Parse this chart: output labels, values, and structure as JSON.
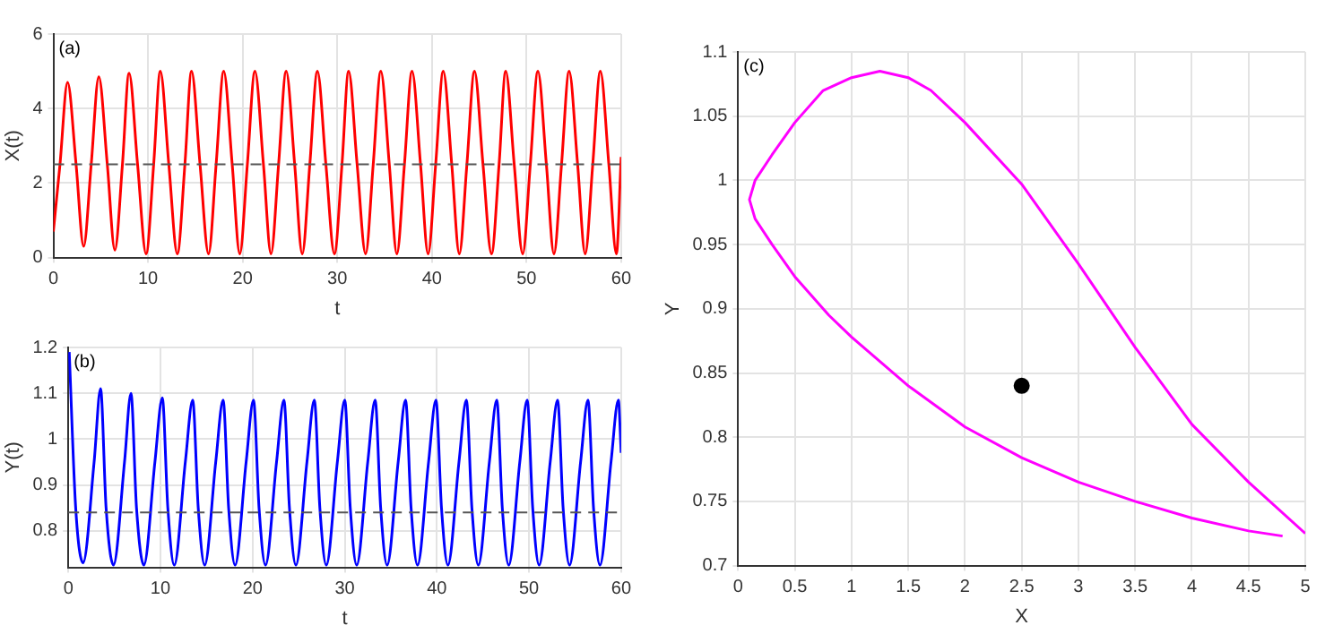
{
  "chart_data": [
    {
      "type": "line",
      "annotations": [
        "(a)"
      ],
      "xlabel": "t",
      "ylabel": "X(t)",
      "xlim": [
        0,
        60
      ],
      "xticks": [
        0,
        10,
        20,
        30,
        40,
        50,
        60
      ],
      "ylim": [
        0,
        6
      ],
      "yticks": [
        0,
        2,
        4,
        6
      ],
      "grid": true,
      "legend": false,
      "marker": "none",
      "line_style": "solid",
      "ref_lines": [
        {
          "axis": "y",
          "value": 2.5,
          "color": "#555555",
          "line_style": "dashed"
        }
      ],
      "series": [
        {
          "color": "#ff0000",
          "x": [
            0,
            0.7,
            1.5,
            2.4,
            3.2,
            4.0,
            4.8,
            5.7,
            6.5,
            7.3,
            8.0,
            8.9,
            9.8,
            10.6,
            11.3,
            12.2,
            13.1,
            13.9,
            14.6,
            15.5,
            16.4,
            17.2,
            18.0,
            18.9,
            19.7,
            20.5,
            21.3,
            22.2,
            23.0,
            23.8,
            24.6,
            25.5,
            26.3,
            27.1,
            27.9,
            28.8,
            29.7,
            30.5,
            31.2,
            32.1,
            33.0,
            33.8,
            34.6,
            35.5,
            36.3,
            37.1,
            37.9,
            38.8,
            39.6,
            40.4,
            41.2,
            42.1,
            42.9,
            43.7,
            44.5,
            45.4,
            46.3,
            47.1,
            47.8,
            48.7,
            49.6,
            50.4,
            51.2,
            52.1,
            52.9,
            53.7,
            54.5,
            55.4,
            56.2,
            57.0,
            57.8,
            58.7,
            59.5,
            60
          ],
          "values": [
            0.7,
            2.5,
            4.7,
            2.5,
            0.3,
            2.5,
            4.85,
            2.5,
            0.2,
            2.5,
            4.95,
            2.5,
            0.1,
            2.5,
            5.0,
            2.5,
            0.1,
            2.5,
            5.0,
            2.5,
            0.1,
            2.5,
            5.0,
            2.5,
            0.1,
            2.5,
            5.0,
            2.5,
            0.1,
            2.5,
            5.0,
            2.5,
            0.1,
            2.5,
            5.0,
            2.5,
            0.1,
            2.5,
            5.0,
            2.5,
            0.1,
            2.5,
            5.0,
            2.5,
            0.1,
            2.5,
            5.0,
            2.5,
            0.1,
            2.5,
            5.0,
            2.5,
            0.1,
            2.5,
            5.0,
            2.5,
            0.1,
            2.5,
            5.0,
            2.5,
            0.1,
            2.5,
            5.0,
            2.5,
            0.1,
            2.5,
            5.0,
            2.5,
            0.1,
            2.5,
            5.0,
            2.5,
            0.1,
            2.7
          ]
        }
      ]
    },
    {
      "type": "line",
      "annotations": [
        "(b)"
      ],
      "xlabel": "t",
      "ylabel": "Y(t)",
      "xlim": [
        0,
        60
      ],
      "xticks": [
        0,
        10,
        20,
        30,
        40,
        50,
        60
      ],
      "ylim": [
        0.72,
        1.2
      ],
      "yticks": [
        0.8,
        0.9,
        1,
        1.1,
        1.2
      ],
      "grid": true,
      "legend": false,
      "marker": "none",
      "line_style": "solid",
      "ref_lines": [
        {
          "axis": "y",
          "value": 0.84,
          "color": "#555555",
          "line_style": "dashed"
        }
      ],
      "series": [
        {
          "color": "#0000ff",
          "x": [
            0.1,
            0.8,
            1.6,
            2.8,
            3.5,
            4.1,
            4.9,
            6.1,
            6.8,
            7.4,
            8.2,
            9.4,
            10.2,
            10.8,
            11.5,
            12.7,
            13.5,
            14.1,
            14.8,
            16.0,
            16.8,
            17.4,
            18.1,
            19.3,
            20.1,
            20.7,
            21.4,
            22.6,
            23.4,
            24.0,
            24.7,
            25.9,
            26.7,
            27.3,
            28.0,
            29.2,
            30.0,
            30.6,
            31.3,
            32.5,
            33.3,
            33.9,
            34.6,
            35.8,
            36.6,
            37.2,
            37.9,
            39.1,
            39.9,
            40.5,
            41.2,
            42.4,
            43.2,
            43.8,
            44.5,
            45.7,
            46.5,
            47.1,
            47.8,
            49.0,
            49.8,
            50.4,
            51.1,
            52.3,
            53.1,
            53.7,
            54.4,
            55.6,
            56.4,
            57.0,
            57.7,
            58.9,
            59.7,
            60
          ],
          "values": [
            1.19,
            0.85,
            0.73,
            0.95,
            1.11,
            0.85,
            0.725,
            0.95,
            1.1,
            0.85,
            0.725,
            0.95,
            1.09,
            0.85,
            0.725,
            0.95,
            1.085,
            0.85,
            0.725,
            0.95,
            1.085,
            0.85,
            0.725,
            0.95,
            1.085,
            0.85,
            0.725,
            0.95,
            1.085,
            0.85,
            0.725,
            0.95,
            1.085,
            0.85,
            0.725,
            0.95,
            1.085,
            0.85,
            0.725,
            0.95,
            1.085,
            0.85,
            0.725,
            0.95,
            1.085,
            0.85,
            0.725,
            0.95,
            1.085,
            0.85,
            0.725,
            0.95,
            1.085,
            0.85,
            0.725,
            0.95,
            1.085,
            0.85,
            0.725,
            0.95,
            1.085,
            0.85,
            0.725,
            0.95,
            1.085,
            0.85,
            0.725,
            0.95,
            1.085,
            0.85,
            0.725,
            0.95,
            1.085,
            0.97
          ]
        }
      ]
    },
    {
      "type": "line",
      "annotations": [
        "(c)"
      ],
      "xlabel": "X",
      "ylabel": "Y",
      "xlim": [
        0,
        5
      ],
      "xticks": [
        0,
        0.5,
        1,
        1.5,
        2,
        2.5,
        3,
        3.5,
        4,
        4.5,
        5
      ],
      "ylim": [
        0.7,
        1.1
      ],
      "yticks": [
        0.7,
        0.75,
        0.8,
        0.85,
        0.9,
        0.95,
        1,
        1.05,
        1.1
      ],
      "grid": true,
      "legend": false,
      "line_style": "solid",
      "series": [
        {
          "type": "line",
          "marker": "none",
          "color": "#ff00ff",
          "x": [
            5,
            4.5,
            4,
            3.5,
            3,
            2.5,
            2,
            1.7,
            1.5,
            1.25,
            1,
            0.75,
            0.5,
            0.3,
            0.15,
            0.1,
            0.15,
            0.3,
            0.5,
            0.8,
            1,
            1.5,
            2,
            2.5,
            3,
            3.5,
            4,
            4.5,
            4.8
          ],
          "values": [
            0.725,
            0.765,
            0.81,
            0.87,
            0.935,
            0.997,
            1.045,
            1.07,
            1.08,
            1.085,
            1.08,
            1.07,
            1.045,
            1.02,
            1.0,
            0.985,
            0.97,
            0.95,
            0.925,
            0.895,
            0.878,
            0.84,
            0.808,
            0.784,
            0.765,
            0.75,
            0.737,
            0.727,
            0.723
          ]
        },
        {
          "type": "scatter",
          "marker": "circle",
          "color": "#000000",
          "x": [
            2.5
          ],
          "values": [
            0.84
          ]
        }
      ]
    }
  ]
}
